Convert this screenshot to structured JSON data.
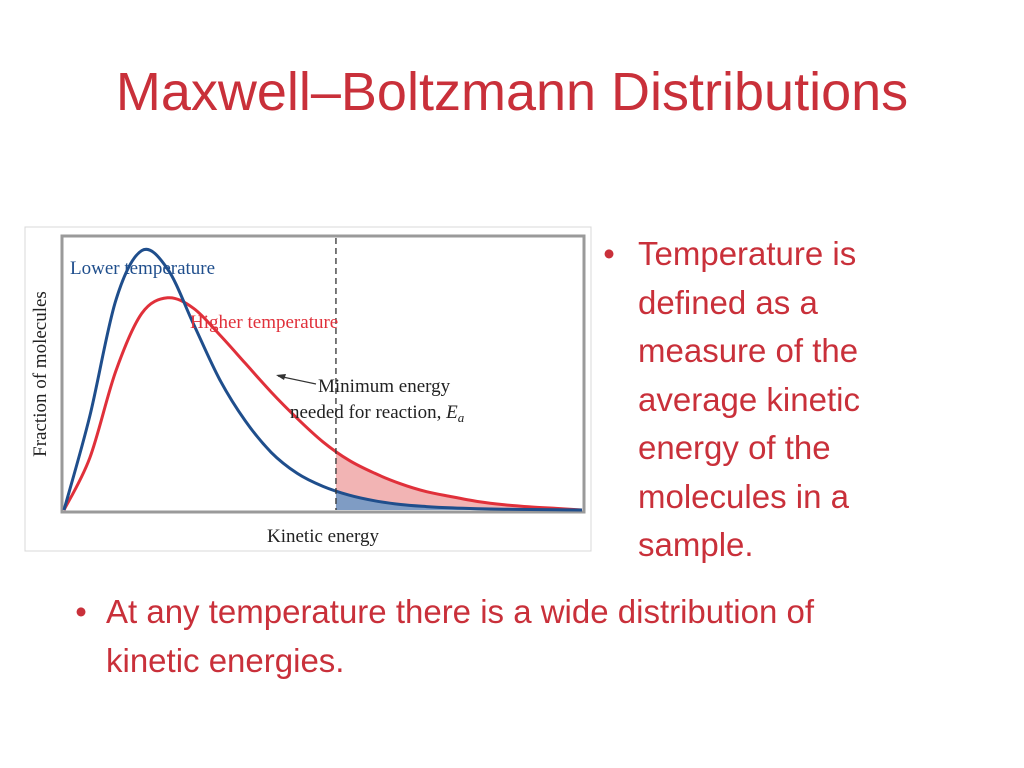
{
  "slide": {
    "title": "Maxwell–Boltzmann Distributions",
    "bullets": [
      {
        "marker": "•",
        "text": "Temperature is defined as a measure of the average kinetic energy of the molecules in a sample."
      },
      {
        "marker": "•",
        "text": "At any temperature there is a wide distribution of kinetic energies."
      }
    ]
  },
  "chart_data": {
    "type": "line",
    "xlabel": "Kinetic energy",
    "ylabel": "Fraction of molecules",
    "grid": false,
    "x": [
      0,
      0.5,
      1,
      1.5,
      2,
      2.5,
      3,
      3.5,
      4,
      4.5,
      5,
      5.5,
      6,
      6.5,
      7,
      7.5,
      8,
      8.5,
      9,
      9.5,
      10
    ],
    "xlim": [
      0,
      10
    ],
    "ylim": [
      0,
      1
    ],
    "series": [
      {
        "name": "Lower temperature",
        "color": "#1f4e8c",
        "values": [
          0,
          0.36,
          0.8,
          0.99,
          0.92,
          0.71,
          0.5,
          0.34,
          0.22,
          0.14,
          0.09,
          0.057,
          0.035,
          0.021,
          0.013,
          0.008,
          0.005,
          0.003,
          0.002,
          0.001,
          0
        ]
      },
      {
        "name": "Higher temperature",
        "color": "#e0303a",
        "values": [
          0,
          0.2,
          0.53,
          0.75,
          0.81,
          0.77,
          0.67,
          0.56,
          0.45,
          0.35,
          0.26,
          0.19,
          0.14,
          0.1,
          0.07,
          0.05,
          0.032,
          0.02,
          0.012,
          0.006,
          0
        ]
      }
    ],
    "threshold": {
      "x": 5.25,
      "label_line1": "Minimum energy",
      "label_line2": "needed for reaction,",
      "symbol": "E",
      "subscript": "a"
    },
    "shading": {
      "higher_color": "#f2b4b4",
      "lower_color": "#7f9cc4"
    }
  }
}
